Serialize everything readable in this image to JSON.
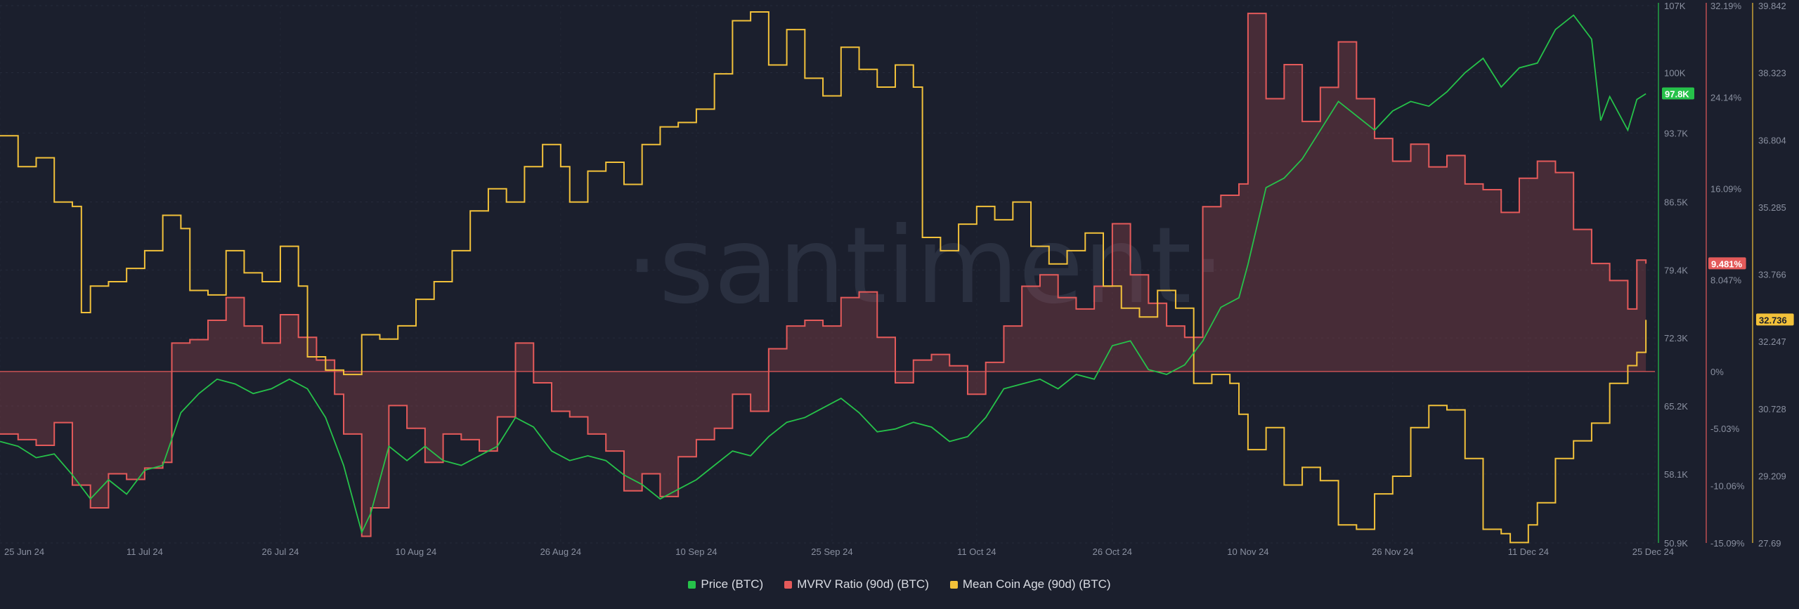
{
  "watermark": "·santiment·",
  "chart_data": {
    "type": "line",
    "x_ticks": [
      "25 Jun 24",
      "11 Jul 24",
      "26 Jul 24",
      "10 Aug 24",
      "26 Aug 24",
      "10 Sep 24",
      "25 Sep 24",
      "11 Oct 24",
      "26 Oct 24",
      "10 Nov 24",
      "26 Nov 24",
      "11 Dec 24",
      "25 Dec 24"
    ],
    "x_tick_days": [
      0,
      16,
      31,
      46,
      62,
      77,
      92,
      108,
      123,
      138,
      154,
      169,
      183
    ],
    "series": [
      {
        "name": "Price (BTC)",
        "color": "#26c24a",
        "axis": "price",
        "ticks": [
          "107K",
          "100K",
          "93.7K",
          "86.5K",
          "79.4K",
          "72.3K",
          "65.2K",
          "58.1K",
          "50.9K"
        ],
        "ylim": [
          50900,
          107000
        ],
        "current": "97.8K",
        "current_value": 97800,
        "points": [
          [
            0,
            61500
          ],
          [
            2,
            61000
          ],
          [
            4,
            59800
          ],
          [
            6,
            60200
          ],
          [
            8,
            58000
          ],
          [
            10,
            55500
          ],
          [
            12,
            57500
          ],
          [
            14,
            56000
          ],
          [
            16,
            58500
          ],
          [
            18,
            59000
          ],
          [
            20,
            64500
          ],
          [
            22,
            66500
          ],
          [
            24,
            68000
          ],
          [
            26,
            67500
          ],
          [
            28,
            66500
          ],
          [
            30,
            67000
          ],
          [
            32,
            68000
          ],
          [
            34,
            67000
          ],
          [
            36,
            64000
          ],
          [
            38,
            59000
          ],
          [
            40,
            52000
          ],
          [
            41,
            54000
          ],
          [
            43,
            61000
          ],
          [
            45,
            59500
          ],
          [
            47,
            61000
          ],
          [
            49,
            59500
          ],
          [
            51,
            59000
          ],
          [
            53,
            60000
          ],
          [
            55,
            61000
          ],
          [
            57,
            64000
          ],
          [
            59,
            63000
          ],
          [
            61,
            60500
          ],
          [
            63,
            59500
          ],
          [
            65,
            60000
          ],
          [
            67,
            59500
          ],
          [
            69,
            58000
          ],
          [
            71,
            57000
          ],
          [
            73,
            55500
          ],
          [
            75,
            56500
          ],
          [
            77,
            57500
          ],
          [
            79,
            59000
          ],
          [
            81,
            60500
          ],
          [
            83,
            60000
          ],
          [
            85,
            62000
          ],
          [
            87,
            63500
          ],
          [
            89,
            64000
          ],
          [
            91,
            65000
          ],
          [
            93,
            66000
          ],
          [
            95,
            64500
          ],
          [
            97,
            62500
          ],
          [
            99,
            62800
          ],
          [
            101,
            63500
          ],
          [
            103,
            63000
          ],
          [
            105,
            61500
          ],
          [
            107,
            62000
          ],
          [
            109,
            64000
          ],
          [
            111,
            67000
          ],
          [
            113,
            67500
          ],
          [
            115,
            68000
          ],
          [
            117,
            67000
          ],
          [
            119,
            68500
          ],
          [
            121,
            68000
          ],
          [
            123,
            71500
          ],
          [
            125,
            72000
          ],
          [
            127,
            69000
          ],
          [
            129,
            68500
          ],
          [
            131,
            69500
          ],
          [
            133,
            72000
          ],
          [
            135,
            75500
          ],
          [
            137,
            76500
          ],
          [
            138,
            80000
          ],
          [
            139,
            84000
          ],
          [
            140,
            88000
          ],
          [
            142,
            89000
          ],
          [
            144,
            91000
          ],
          [
            146,
            94000
          ],
          [
            148,
            97000
          ],
          [
            150,
            95500
          ],
          [
            152,
            94000
          ],
          [
            154,
            96000
          ],
          [
            156,
            97000
          ],
          [
            158,
            96500
          ],
          [
            160,
            98000
          ],
          [
            162,
            100000
          ],
          [
            164,
            101500
          ],
          [
            166,
            98500
          ],
          [
            168,
            100500
          ],
          [
            170,
            101000
          ],
          [
            172,
            104500
          ],
          [
            174,
            106000
          ],
          [
            176,
            103500
          ],
          [
            177,
            95000
          ],
          [
            178,
            97500
          ],
          [
            180,
            94000
          ],
          [
            181,
            97200
          ],
          [
            182,
            97800
          ]
        ]
      },
      {
        "name": "MVRV Ratio (90d) (BTC)",
        "color": "#e45a5a",
        "axis": "mvrv",
        "ticks": [
          "32.19%",
          "24.14%",
          "16.09%",
          "9.481%",
          "8.047%",
          "0%",
          "-5.03%",
          "-10.06%",
          "-15.09%"
        ],
        "ylim": [
          -15.09,
          32.19
        ],
        "current": "9.481%",
        "current_value": 9.481,
        "points": [
          [
            0,
            -5.5
          ],
          [
            2,
            -6
          ],
          [
            4,
            -6.5
          ],
          [
            6,
            -4.5
          ],
          [
            8,
            -10
          ],
          [
            10,
            -12
          ],
          [
            12,
            -9
          ],
          [
            14,
            -9.5
          ],
          [
            16,
            -8.5
          ],
          [
            18,
            -8
          ],
          [
            19,
            2.5
          ],
          [
            21,
            2.8
          ],
          [
            23,
            4.5
          ],
          [
            25,
            6.5
          ],
          [
            27,
            4
          ],
          [
            29,
            2.5
          ],
          [
            31,
            5
          ],
          [
            33,
            3
          ],
          [
            35,
            1
          ],
          [
            37,
            -2
          ],
          [
            38,
            -5.5
          ],
          [
            40,
            -14.5
          ],
          [
            41,
            -12
          ],
          [
            43,
            -3
          ],
          [
            45,
            -5
          ],
          [
            47,
            -8
          ],
          [
            49,
            -5.5
          ],
          [
            51,
            -6
          ],
          [
            53,
            -7
          ],
          [
            55,
            -4
          ],
          [
            57,
            2.5
          ],
          [
            59,
            -1
          ],
          [
            61,
            -3.5
          ],
          [
            63,
            -4
          ],
          [
            65,
            -5.5
          ],
          [
            67,
            -7
          ],
          [
            69,
            -10.5
          ],
          [
            71,
            -9
          ],
          [
            73,
            -11
          ],
          [
            75,
            -7.5
          ],
          [
            77,
            -6
          ],
          [
            79,
            -5
          ],
          [
            81,
            -2
          ],
          [
            83,
            -3.5
          ],
          [
            85,
            2
          ],
          [
            87,
            4
          ],
          [
            89,
            4.5
          ],
          [
            91,
            4
          ],
          [
            93,
            6.5
          ],
          [
            95,
            7
          ],
          [
            97,
            3
          ],
          [
            99,
            -1
          ],
          [
            101,
            1
          ],
          [
            103,
            1.5
          ],
          [
            105,
            0.5
          ],
          [
            107,
            -2
          ],
          [
            109,
            0.8
          ],
          [
            111,
            4
          ],
          [
            113,
            7.5
          ],
          [
            115,
            8.5
          ],
          [
            117,
            6.5
          ],
          [
            119,
            5.5
          ],
          [
            121,
            7.5
          ],
          [
            123,
            13
          ],
          [
            125,
            8.5
          ],
          [
            127,
            6
          ],
          [
            129,
            4
          ],
          [
            131,
            3
          ],
          [
            133,
            14.5
          ],
          [
            135,
            15.5
          ],
          [
            137,
            16.5
          ],
          [
            138,
            31.5
          ],
          [
            140,
            24
          ],
          [
            142,
            27
          ],
          [
            144,
            22
          ],
          [
            146,
            25
          ],
          [
            148,
            29
          ],
          [
            150,
            24
          ],
          [
            152,
            20.5
          ],
          [
            154,
            18.5
          ],
          [
            156,
            20
          ],
          [
            158,
            18
          ],
          [
            160,
            19
          ],
          [
            162,
            16.5
          ],
          [
            164,
            16
          ],
          [
            166,
            14
          ],
          [
            168,
            17
          ],
          [
            170,
            18.5
          ],
          [
            172,
            17.5
          ],
          [
            174,
            12.5
          ],
          [
            176,
            9.5
          ],
          [
            178,
            8
          ],
          [
            180,
            5.5
          ],
          [
            181,
            9.8
          ],
          [
            182,
            9.481
          ]
        ]
      },
      {
        "name": "Mean Coin Age (90d) (BTC)",
        "color": "#f2c13a",
        "axis": "age",
        "ticks": [
          "39.842",
          "38.323",
          "36.804",
          "35.285",
          "33.766",
          "32.736",
          "32.247",
          "30.728",
          "29.209",
          "27.69"
        ],
        "ylim": [
          27.69,
          39.842
        ],
        "current": "32.736",
        "current_value": 32.736,
        "points": [
          [
            0,
            36.9
          ],
          [
            2,
            36.2
          ],
          [
            4,
            36.4
          ],
          [
            6,
            35.4
          ],
          [
            8,
            35.3
          ],
          [
            9,
            32.9
          ],
          [
            10,
            33.5
          ],
          [
            12,
            33.6
          ],
          [
            14,
            33.9
          ],
          [
            16,
            34.3
          ],
          [
            18,
            35.1
          ],
          [
            20,
            34.8
          ],
          [
            21,
            33.4
          ],
          [
            23,
            33.3
          ],
          [
            25,
            34.3
          ],
          [
            27,
            33.8
          ],
          [
            29,
            33.6
          ],
          [
            31,
            34.4
          ],
          [
            33,
            33.5
          ],
          [
            34,
            31.9
          ],
          [
            36,
            31.6
          ],
          [
            38,
            31.5
          ],
          [
            40,
            32.4
          ],
          [
            42,
            32.3
          ],
          [
            44,
            32.6
          ],
          [
            46,
            33.2
          ],
          [
            48,
            33.6
          ],
          [
            50,
            34.3
          ],
          [
            52,
            35.2
          ],
          [
            54,
            35.7
          ],
          [
            56,
            35.4
          ],
          [
            58,
            36.2
          ],
          [
            60,
            36.7
          ],
          [
            62,
            36.2
          ],
          [
            63,
            35.4
          ],
          [
            65,
            36.1
          ],
          [
            67,
            36.3
          ],
          [
            69,
            35.8
          ],
          [
            71,
            36.7
          ],
          [
            73,
            37.1
          ],
          [
            75,
            37.2
          ],
          [
            77,
            37.5
          ],
          [
            79,
            38.3
          ],
          [
            81,
            39.5
          ],
          [
            83,
            39.7
          ],
          [
            85,
            38.5
          ],
          [
            87,
            39.3
          ],
          [
            89,
            38.2
          ],
          [
            91,
            37.8
          ],
          [
            93,
            38.9
          ],
          [
            95,
            38.4
          ],
          [
            97,
            38.0
          ],
          [
            99,
            38.5
          ],
          [
            101,
            38.0
          ],
          [
            102,
            34.6
          ],
          [
            104,
            34.3
          ],
          [
            106,
            34.9
          ],
          [
            108,
            35.3
          ],
          [
            110,
            35.0
          ],
          [
            112,
            35.4
          ],
          [
            114,
            34.4
          ],
          [
            116,
            34.0
          ],
          [
            118,
            34.3
          ],
          [
            120,
            34.7
          ],
          [
            122,
            33.5
          ],
          [
            124,
            33.0
          ],
          [
            126,
            32.8
          ],
          [
            128,
            33.4
          ],
          [
            130,
            33.0
          ],
          [
            132,
            31.3
          ],
          [
            134,
            31.5
          ],
          [
            136,
            31.3
          ],
          [
            137,
            30.6
          ],
          [
            138,
            29.8
          ],
          [
            140,
            30.3
          ],
          [
            142,
            29.0
          ],
          [
            144,
            29.4
          ],
          [
            146,
            29.1
          ],
          [
            148,
            28.1
          ],
          [
            150,
            28.0
          ],
          [
            152,
            28.8
          ],
          [
            154,
            29.2
          ],
          [
            156,
            30.3
          ],
          [
            158,
            30.8
          ],
          [
            160,
            30.7
          ],
          [
            162,
            29.6
          ],
          [
            164,
            28.0
          ],
          [
            166,
            27.9
          ],
          [
            167,
            27.7
          ],
          [
            169,
            28.1
          ],
          [
            170,
            28.6
          ],
          [
            172,
            29.6
          ],
          [
            174,
            30.0
          ],
          [
            176,
            30.4
          ],
          [
            178,
            31.3
          ],
          [
            180,
            31.7
          ],
          [
            181,
            32.0
          ],
          [
            182,
            32.736
          ]
        ]
      }
    ],
    "legend": [
      {
        "label": "Price (BTC)",
        "color": "#26c24a"
      },
      {
        "label": "MVRV Ratio (90d) (BTC)",
        "color": "#e45a5a"
      },
      {
        "label": "Mean Coin Age (90d) (BTC)",
        "color": "#f2c13a"
      }
    ],
    "legend_position": "bottom-center",
    "grid": true
  }
}
